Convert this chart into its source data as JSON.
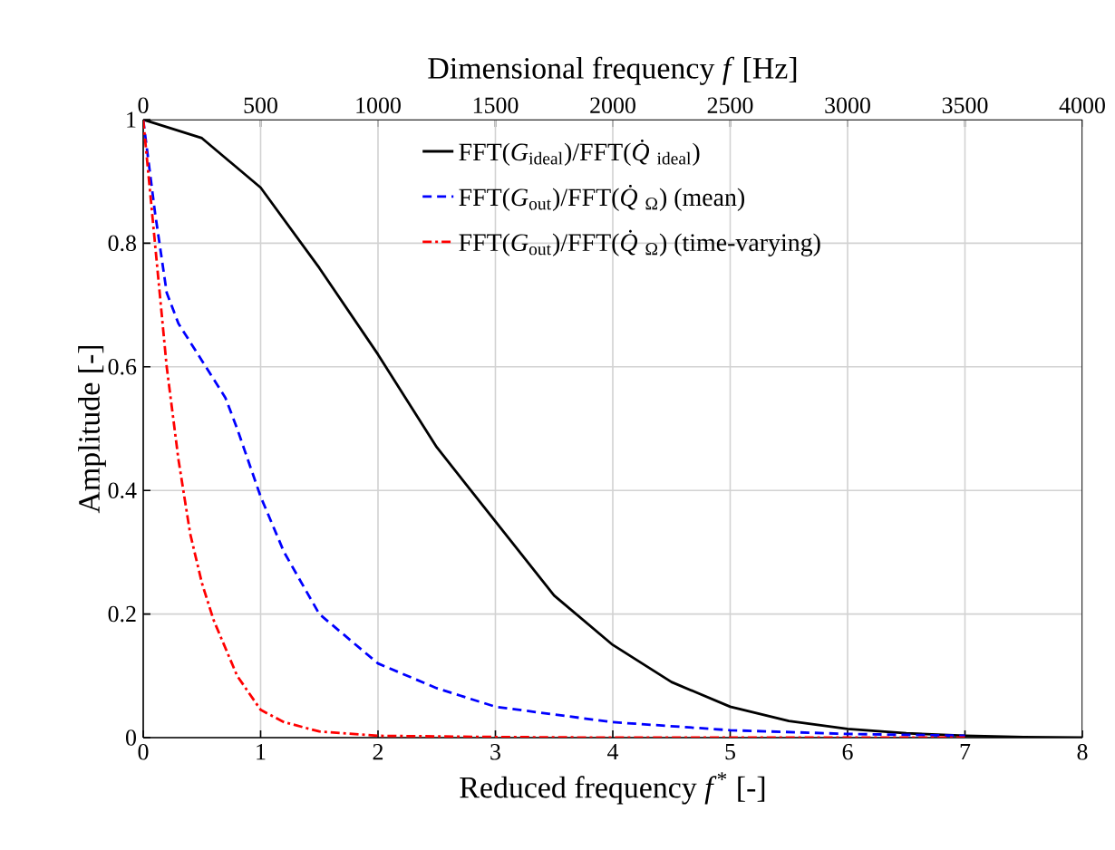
{
  "chart_data": {
    "type": "line",
    "xlabel": "Reduced frequency *f*$^{*}$ [-]",
    "ylabel": "Amplitude [-]",
    "x2label": "Dimensional frequency *f* [Hz]",
    "xlim": [
      0,
      8
    ],
    "xticks": [
      0,
      1,
      2,
      3,
      4,
      5,
      6,
      7,
      8
    ],
    "ylim": [
      0,
      1
    ],
    "yticks": [
      0,
      0.2,
      0.4,
      0.6,
      0.8,
      1
    ],
    "x2lim": [
      0,
      4000
    ],
    "x2ticks": [
      0,
      500,
      1000,
      1500,
      2000,
      2500,
      3000,
      3500,
      4000
    ],
    "grid": true,
    "legend": "top right",
    "series": [
      {
        "name": "FFT(*G*$_{ideal}$)/FFT(*Q̇*$_{ideal}$)",
        "color": "#000000",
        "line_style": "solid",
        "x": [
          0,
          0.5,
          1,
          1.5,
          2,
          2.5,
          3,
          3.5,
          4,
          4.5,
          5,
          5.5,
          6,
          6.5,
          7,
          7.5,
          8
        ],
        "values": [
          1,
          0.97,
          0.89,
          0.76,
          0.62,
          0.47,
          0.35,
          0.23,
          0.15,
          0.09,
          0.05,
          0.027,
          0.014,
          0.007,
          0.003,
          0.001,
          0
        ]
      },
      {
        "name": "FFT(*G*$_{out}$)/FFT(*Q̇*$_{Ω}$) (mean)",
        "color": "#0000ff",
        "line_style": "dashed",
        "x": [
          0,
          0.1,
          0.2,
          0.3,
          0.5,
          0.7,
          0.8,
          1,
          1.2,
          1.5,
          2,
          2.5,
          3,
          4,
          5,
          6,
          7
        ],
        "values": [
          1,
          0.85,
          0.72,
          0.67,
          0.61,
          0.55,
          0.5,
          0.39,
          0.3,
          0.2,
          0.12,
          0.08,
          0.05,
          0.025,
          0.012,
          0.006,
          0.003
        ]
      },
      {
        "name": "FFT(*G*$_{out}$)/FFT(*Q̇*$_{Ω}$) (time-varying)",
        "color": "#ff0000",
        "line_style": "dashdot",
        "x": [
          0,
          0.1,
          0.2,
          0.3,
          0.4,
          0.5,
          0.6,
          0.8,
          1,
          1.2,
          1.5,
          2,
          3,
          4,
          5,
          6,
          7
        ],
        "values": [
          1,
          0.8,
          0.6,
          0.45,
          0.33,
          0.25,
          0.19,
          0.1,
          0.045,
          0.025,
          0.01,
          0.003,
          0.001,
          0,
          0,
          0,
          0
        ]
      }
    ]
  }
}
